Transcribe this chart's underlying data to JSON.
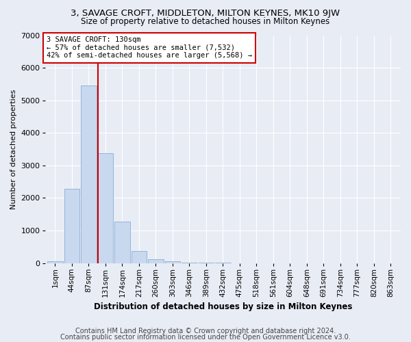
{
  "title": "3, SAVAGE CROFT, MIDDLETON, MILTON KEYNES, MK10 9JW",
  "subtitle": "Size of property relative to detached houses in Milton Keynes",
  "xlabel": "Distribution of detached houses by size in Milton Keynes",
  "ylabel": "Number of detached properties",
  "footnote1": "Contains HM Land Registry data © Crown copyright and database right 2024.",
  "footnote2": "Contains public sector information licensed under the Open Government Licence v3.0.",
  "annotation_title": "3 SAVAGE CROFT: 130sqm",
  "annotation_line2": "← 57% of detached houses are smaller (7,532)",
  "annotation_line3": "42% of semi-detached houses are larger (5,568) →",
  "bar_labels": [
    "1sqm",
    "44sqm",
    "87sqm",
    "131sqm",
    "174sqm",
    "217sqm",
    "260sqm",
    "303sqm",
    "346sqm",
    "389sqm",
    "432sqm",
    "475sqm",
    "518sqm",
    "561sqm",
    "604sqm",
    "648sqm",
    "691sqm",
    "734sqm",
    "777sqm",
    "820sqm",
    "863sqm"
  ],
  "bar_values": [
    50,
    2280,
    5450,
    3380,
    1280,
    370,
    120,
    55,
    20,
    8,
    3,
    1,
    0,
    0,
    0,
    0,
    0,
    0,
    0,
    0,
    0
  ],
  "bar_color": "#c8d8ee",
  "bar_edge_color": "#8aaed4",
  "marker_bar_index": 3,
  "marker_color": "#cc0000",
  "ylim": [
    0,
    7000
  ],
  "yticks": [
    0,
    1000,
    2000,
    3000,
    4000,
    5000,
    6000,
    7000
  ],
  "fig_bg_color": "#e8ecf5",
  "plot_bg_color": "#e8ecf5",
  "annotation_box_facecolor": "#ffffff",
  "annotation_box_edgecolor": "#cc0000",
  "title_fontsize": 9.5,
  "subtitle_fontsize": 8.5,
  "footnote_fontsize": 7.0,
  "ylabel_fontsize": 8.0,
  "xlabel_fontsize": 8.5,
  "tick_fontsize": 7.5,
  "ytick_fontsize": 8.0,
  "annotation_fontsize": 7.5
}
